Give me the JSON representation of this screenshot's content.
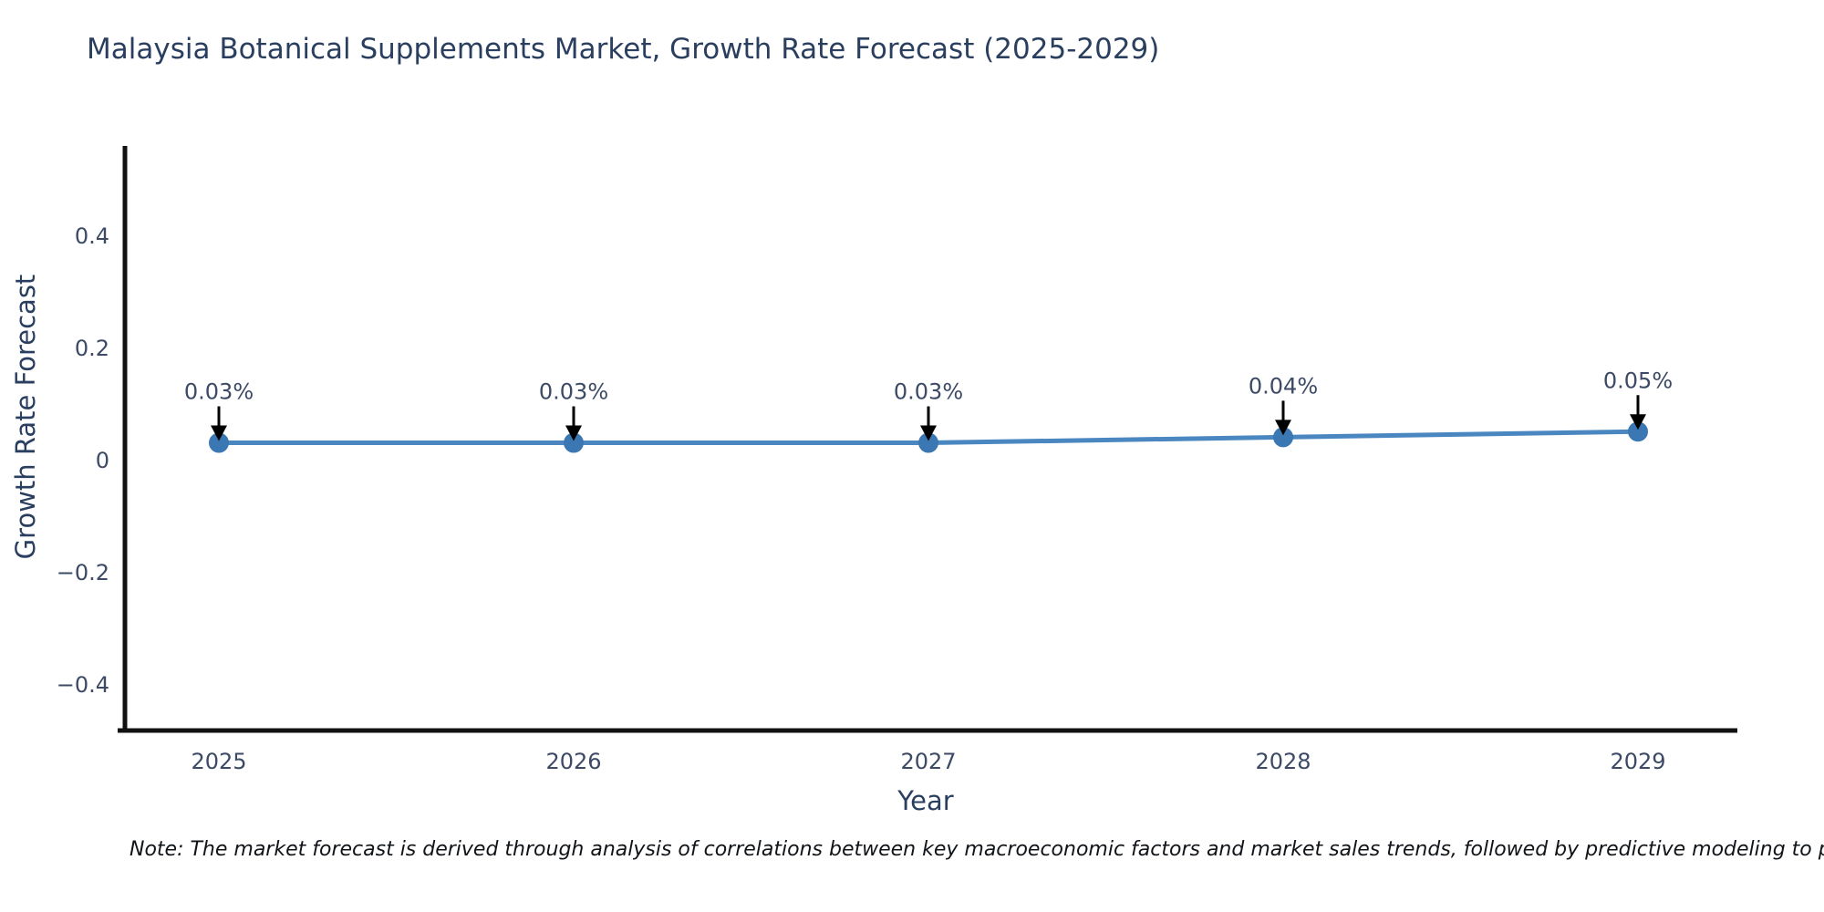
{
  "title": "Malaysia Botanical Supplements Market, Growth Rate Forecast (2025-2029)",
  "note": "Note: The market forecast is derived through analysis of correlations between key macroeconomic factors and market sales trends, followed by predictive modeling to project future sal",
  "chart_data": {
    "type": "line",
    "title": "Malaysia Botanical Supplements Market, Growth Rate Forecast (2025-2029)",
    "xlabel": "Year",
    "ylabel": "Growth Rate Forecast",
    "categories": [
      "2025",
      "2026",
      "2027",
      "2028",
      "2029"
    ],
    "series": [
      {
        "name": "Growth Rate Forecast",
        "values": [
          0.03,
          0.03,
          0.03,
          0.04,
          0.05
        ]
      }
    ],
    "annotations": [
      "0.03%",
      "0.03%",
      "0.03%",
      "0.04%",
      "0.05%"
    ],
    "yticks": [
      {
        "value": -0.4,
        "label": "−0.4"
      },
      {
        "value": -0.2,
        "label": "−0.2"
      },
      {
        "value": 0,
        "label": "0"
      },
      {
        "value": 0.2,
        "label": "0.2"
      },
      {
        "value": 0.4,
        "label": "0.4"
      }
    ],
    "ylim": [
      -0.48,
      0.56
    ],
    "grid": false,
    "legend": "none",
    "colors": {
      "line": "#4a86c0",
      "marker": "#3b77b2",
      "axis": "#111111",
      "text": "#2a3f5f",
      "arrow": "#000000"
    }
  }
}
